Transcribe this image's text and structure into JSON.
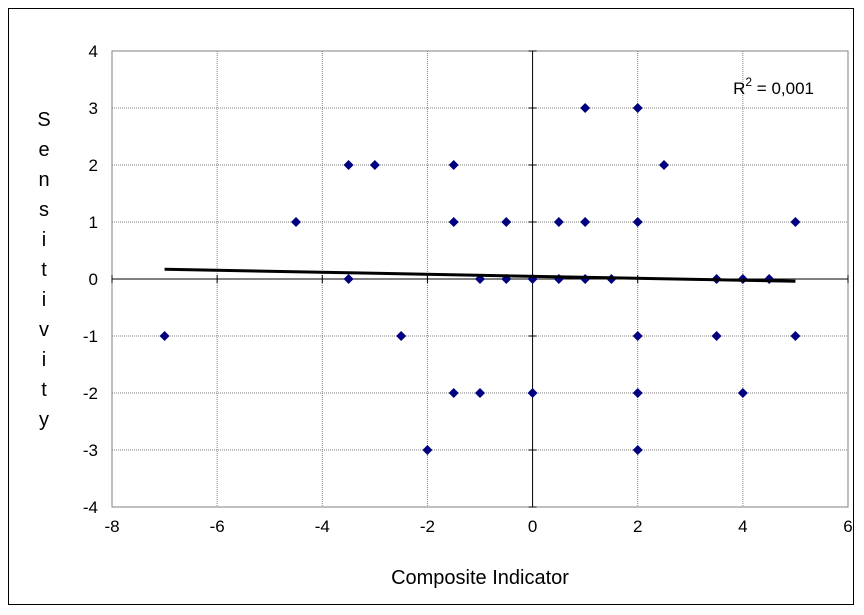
{
  "chart_data": {
    "type": "scatter",
    "xlabel": "Composite Indicator",
    "ylabel": "Sensitivity",
    "xlim": [
      -8,
      6
    ],
    "ylim": [
      -4,
      4
    ],
    "xticks": [
      -8,
      -6,
      -4,
      -2,
      0,
      2,
      4,
      6
    ],
    "yticks": [
      -4,
      -3,
      -2,
      -1,
      0,
      1,
      2,
      3,
      4
    ],
    "x_tick_labels": [
      "-8",
      "-6",
      "-4",
      "-2",
      "0",
      "2",
      "4",
      "6"
    ],
    "y_tick_labels": [
      "-4",
      "-3",
      "-2",
      "-1",
      "0",
      "1",
      "2",
      "3",
      "4"
    ],
    "grid": true,
    "marker_color": "#000080",
    "points": [
      {
        "x": -7,
        "y": -1
      },
      {
        "x": -4.5,
        "y": 1
      },
      {
        "x": -3.5,
        "y": 2
      },
      {
        "x": -3,
        "y": 2
      },
      {
        "x": -3.5,
        "y": 0
      },
      {
        "x": -2.5,
        "y": -1
      },
      {
        "x": -2,
        "y": -3
      },
      {
        "x": -1.5,
        "y": 2
      },
      {
        "x": -1.5,
        "y": 1
      },
      {
        "x": -1.5,
        "y": -2
      },
      {
        "x": -1,
        "y": -2
      },
      {
        "x": -1,
        "y": 0
      },
      {
        "x": -0.5,
        "y": 1
      },
      {
        "x": -0.5,
        "y": 0
      },
      {
        "x": 0,
        "y": 0
      },
      {
        "x": 0,
        "y": -2
      },
      {
        "x": 0.5,
        "y": 1
      },
      {
        "x": 0.5,
        "y": 0
      },
      {
        "x": 1,
        "y": 3
      },
      {
        "x": 1,
        "y": 1
      },
      {
        "x": 1,
        "y": 0
      },
      {
        "x": 1.5,
        "y": 0
      },
      {
        "x": 2,
        "y": 3
      },
      {
        "x": 2,
        "y": 1
      },
      {
        "x": 2,
        "y": -1
      },
      {
        "x": 2,
        "y": -2
      },
      {
        "x": 2,
        "y": -3
      },
      {
        "x": 2.5,
        "y": 2
      },
      {
        "x": 3.5,
        "y": 0
      },
      {
        "x": 3.5,
        "y": -1
      },
      {
        "x": 4,
        "y": 0
      },
      {
        "x": 4,
        "y": -2
      },
      {
        "x": 4.5,
        "y": 0
      },
      {
        "x": 5,
        "y": 1
      },
      {
        "x": 5,
        "y": -1
      }
    ],
    "trendline": {
      "x": [
        -7,
        5
      ],
      "y": [
        0.17,
        -0.04
      ]
    },
    "annotation": {
      "base": "R",
      "sup": "2",
      "rest": " = 0,001"
    }
  }
}
